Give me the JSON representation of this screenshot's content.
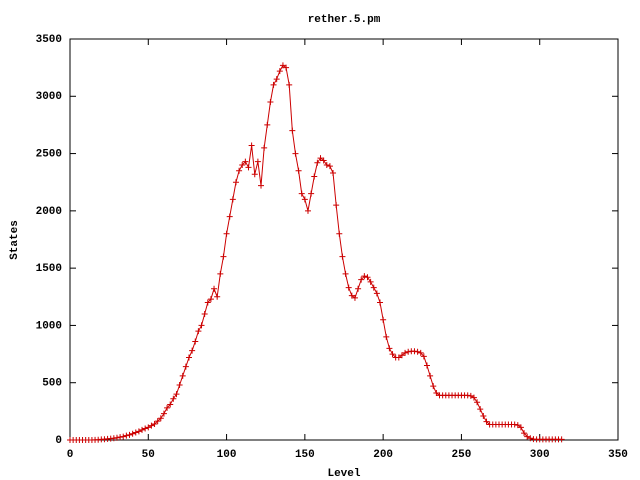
{
  "chart_data": {
    "type": "line",
    "title": "rether.5.pm",
    "xlabel": "Level",
    "ylabel": "States",
    "xlim": [
      0,
      350
    ],
    "xticks": [
      0,
      50,
      100,
      150,
      200,
      250,
      300,
      350
    ],
    "ylim": [
      0,
      3500
    ],
    "yticks": [
      0,
      500,
      1000,
      1500,
      2000,
      2500,
      3000,
      3500
    ],
    "grid": false,
    "marker": "+",
    "x": [
      0,
      2,
      4,
      6,
      8,
      10,
      12,
      14,
      16,
      18,
      20,
      22,
      24,
      26,
      28,
      30,
      32,
      34,
      36,
      38,
      40,
      42,
      44,
      46,
      48,
      50,
      52,
      54,
      56,
      58,
      60,
      62,
      64,
      66,
      68,
      70,
      72,
      74,
      76,
      78,
      80,
      82,
      84,
      86,
      88,
      90,
      92,
      94,
      96,
      98,
      100,
      102,
      104,
      106,
      108,
      110,
      112,
      114,
      116,
      118,
      120,
      122,
      124,
      126,
      128,
      130,
      132,
      134,
      136,
      138,
      140,
      142,
      144,
      146,
      148,
      150,
      152,
      154,
      156,
      158,
      160,
      162,
      164,
      166,
      168,
      170,
      172,
      174,
      176,
      178,
      180,
      182,
      184,
      186,
      188,
      190,
      192,
      194,
      196,
      198,
      200,
      202,
      204,
      206,
      208,
      210,
      212,
      214,
      216,
      218,
      220,
      222,
      224,
      226,
      228,
      230,
      232,
      234,
      236,
      238,
      240,
      242,
      244,
      246,
      248,
      250,
      252,
      254,
      256,
      258,
      260,
      262,
      264,
      266,
      268,
      270,
      272,
      274,
      276,
      278,
      280,
      282,
      284,
      286,
      288,
      290,
      292,
      294,
      296,
      298,
      300,
      302,
      304,
      306,
      308,
      310,
      312,
      314
    ],
    "series": [
      {
        "color": "#cc0000",
        "values": [
          0,
          0,
          0,
          0,
          0,
          0,
          0,
          0,
          1,
          2,
          5,
          7,
          10,
          12,
          15,
          20,
          25,
          30,
          38,
          45,
          55,
          65,
          75,
          88,
          100,
          110,
          125,
          140,
          165,
          190,
          230,
          280,
          310,
          360,
          400,
          480,
          560,
          640,
          720,
          780,
          860,
          950,
          1000,
          1100,
          1200,
          1230,
          1320,
          1250,
          1450,
          1600,
          1800,
          1950,
          2100,
          2250,
          2350,
          2400,
          2430,
          2380,
          2570,
          2320,
          2430,
          2220,
          2550,
          2750,
          2950,
          3100,
          3150,
          3220,
          3270,
          3250,
          3100,
          2700,
          2500,
          2350,
          2150,
          2100,
          2000,
          2150,
          2300,
          2420,
          2460,
          2440,
          2400,
          2390,
          2330,
          2050,
          1800,
          1600,
          1450,
          1330,
          1260,
          1240,
          1320,
          1400,
          1430,
          1420,
          1380,
          1330,
          1280,
          1200,
          1050,
          900,
          800,
          750,
          720,
          720,
          740,
          760,
          770,
          775,
          775,
          770,
          760,
          730,
          650,
          560,
          470,
          410,
          390,
          390,
          390,
          390,
          390,
          390,
          390,
          390,
          390,
          390,
          385,
          370,
          330,
          270,
          210,
          160,
          135,
          135,
          135,
          135,
          135,
          135,
          135,
          135,
          135,
          130,
          110,
          60,
          30,
          15,
          8,
          5,
          5,
          5,
          5,
          5,
          5,
          5,
          5,
          5
        ]
      }
    ]
  }
}
